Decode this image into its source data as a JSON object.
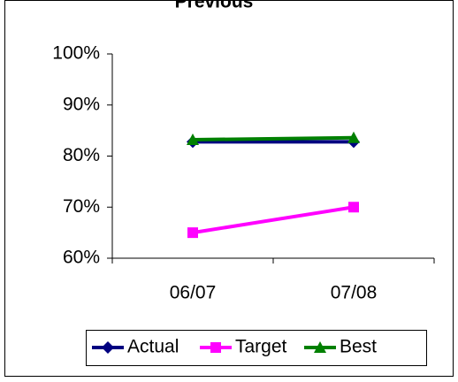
{
  "chart_data": {
    "type": "line",
    "title": "Previous",
    "xlabel": "",
    "ylabel": "",
    "categories": [
      "06/07",
      "07/08"
    ],
    "ylim": [
      60,
      100
    ],
    "yticks": [
      60,
      70,
      80,
      90,
      100
    ],
    "ytick_labels": [
      "60%",
      "70%",
      "80%",
      "90%",
      "100%"
    ],
    "grid": false,
    "legend_position": "bottom",
    "series": [
      {
        "name": "Actual",
        "values": [
          82.8,
          82.8
        ],
        "color": "#000080",
        "marker": "diamond"
      },
      {
        "name": "Target",
        "values": [
          65,
          70
        ],
        "color": "#FF00FF",
        "marker": "square"
      },
      {
        "name": "Best",
        "values": [
          83.2,
          83.6
        ],
        "color": "#008000",
        "marker": "triangle"
      }
    ]
  }
}
